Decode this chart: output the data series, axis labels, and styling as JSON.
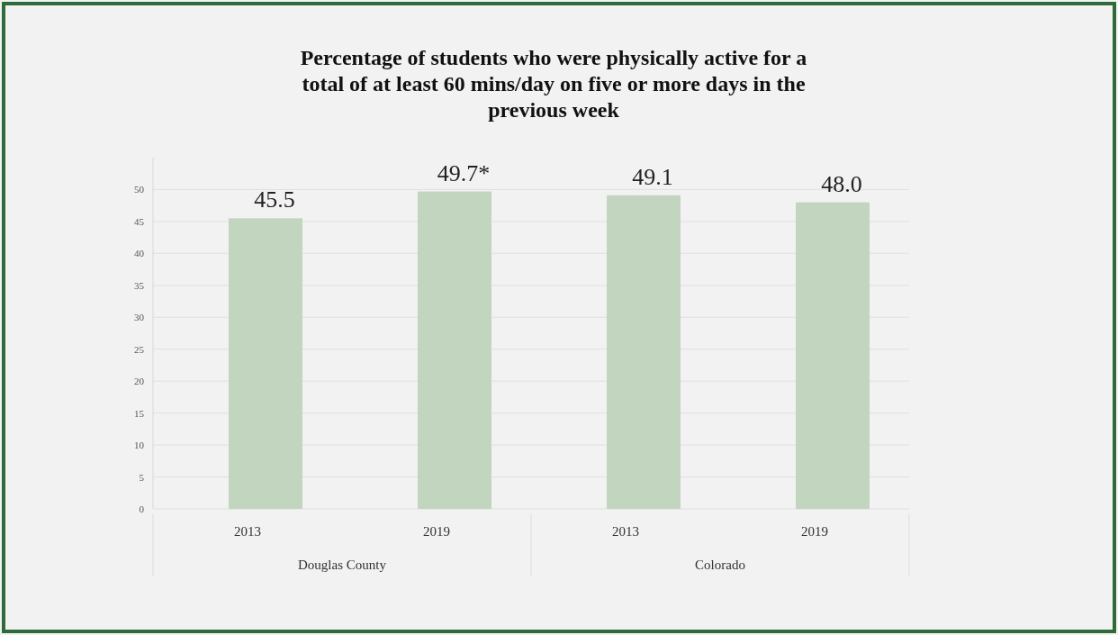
{
  "chart_data": {
    "type": "bar",
    "title": "Percentage of students who were physically active for a total of at least 60 mins/day on five or more days in the previous week",
    "categories": [
      "2013",
      "2019",
      "2013",
      "2019"
    ],
    "values": [
      45.5,
      49.7,
      49.1,
      48.0
    ],
    "value_labels": [
      "45.5",
      "49.7*",
      "49.1",
      "48.0"
    ],
    "color": "#c2d6bf",
    "annotations": [
      "Douglas County",
      "Colorado"
    ],
    "ylim": [
      0,
      55
    ],
    "yticks": [
      0,
      5,
      10,
      15,
      20,
      25,
      30,
      35,
      40,
      45,
      50
    ],
    "grid": true
  }
}
